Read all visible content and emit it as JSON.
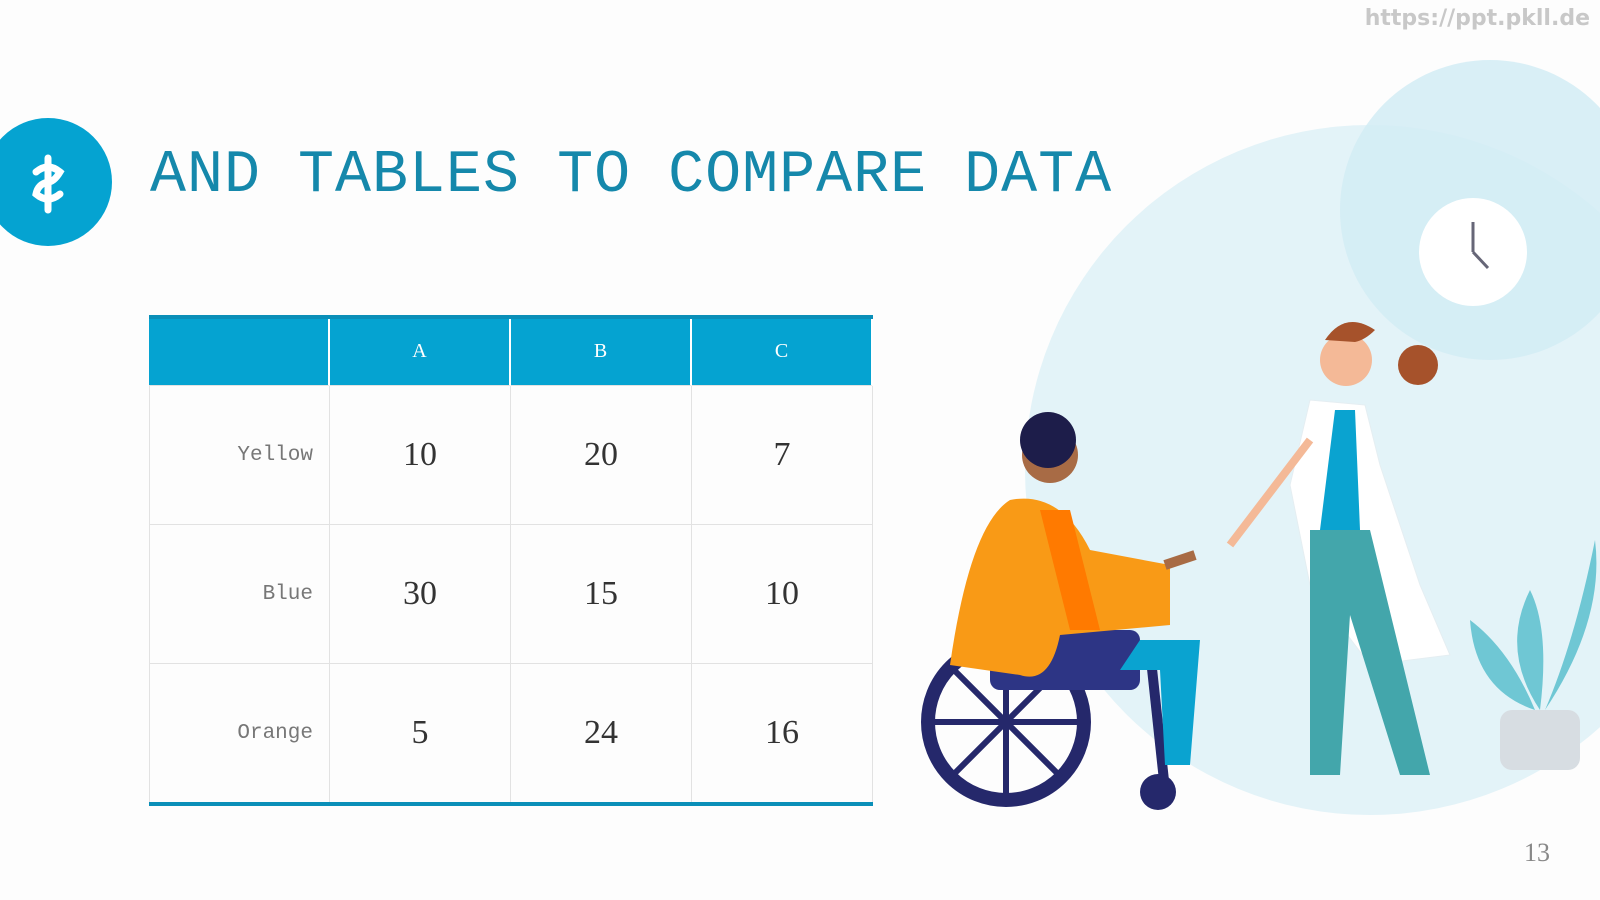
{
  "header": {
    "title": "AND TABLES TO COMPARE DATA",
    "watermark": "https://ppt.pkll.de"
  },
  "table": {
    "columns": [
      "A",
      "B",
      "C"
    ],
    "rows": [
      {
        "label": "Yellow",
        "cells": [
          10,
          20,
          7
        ]
      },
      {
        "label": "Blue",
        "cells": [
          30,
          15,
          10
        ]
      },
      {
        "label": "Orange",
        "cells": [
          5,
          24,
          16
        ]
      }
    ]
  },
  "footer": {
    "page_number": 13
  }
}
